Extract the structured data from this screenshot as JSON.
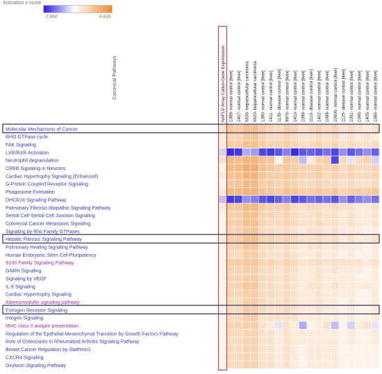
{
  "legend": {
    "title": "Activation z-score",
    "min_label": "-7.000",
    "max_label": "8.639",
    "min_color": "#2a20e0",
    "max_color": "#f08a30"
  },
  "colors": {
    "highlight_box": "#2a2a55",
    "column_highlight": "#b24a4a",
    "grid": "#ffffff"
  },
  "chart_data": {
    "type": "heatmap",
    "title": "",
    "ylabel": "Canonical Pathways",
    "value_range": [
      -7.0,
      8.639
    ],
    "columns": [
      "NAFLD Array Cation-Gene Expresssion",
      "1399- normal control [liver]",
      "1407- normal control [liver]",
      "6636- hepatocellular carcinoma",
      "6620- hepatocellular carcinoma",
      "1390- normal control [liver]",
      "1411- normal control [liver]",
      "1135- disease control [liver]",
      "9976- normal control [liver]",
      "1410- normal control [liver]",
      "1099- normal control [liver]",
      "1110- disease control [liver]",
      "1402- normal control [liver]",
      "1088- normal control [liver]",
      "10606- normal control [liver]",
      "1125- disease control [liver]",
      "1091- normal control [liver]",
      "1095- normal control [liver]",
      "1405- normal control [liver]",
      "1386- normal control [liver]"
    ],
    "highlighted_column": "NAFLD Array Cation-Gene Expresssion",
    "highlighted_rows": [
      "Molecular Mechanisms of Cancer",
      "Hepatic Fibrosis Signaling Pathway",
      "Estrogen Receptor Signaling"
    ],
    "rows": [
      {
        "label": "Molecular Mechanisms of Cancer",
        "color": "#3b3bb0",
        "values": [
          1.5,
          3.5,
          3.0,
          4.0,
          4.0,
          3.0,
          2.5,
          2.0,
          3.0,
          2.5,
          1.5,
          2.0,
          2.5,
          2.0,
          2.5,
          1.5,
          2.0,
          1.5,
          1.0,
          1.5
        ]
      },
      {
        "label": "RHO GTPase cycle",
        "color": "#3b3bb0",
        "values": [
          1.0,
          2.5,
          2.5,
          3.5,
          3.5,
          2.5,
          2.0,
          2.0,
          2.5,
          2.0,
          1.5,
          1.5,
          2.0,
          1.5,
          2.0,
          1.0,
          1.5,
          1.0,
          1.5,
          1.0
        ]
      },
      {
        "label": "FAK Signaling",
        "color": "#3b3bb0",
        "values": [
          1.0,
          3.0,
          3.0,
          4.0,
          4.0,
          3.0,
          2.5,
          2.5,
          3.0,
          2.5,
          2.0,
          2.0,
          2.5,
          2.0,
          2.5,
          1.5,
          2.0,
          1.5,
          1.5,
          2.0
        ]
      },
      {
        "label": "LXR/RXR Activation",
        "color": "#3b3bb0",
        "values": [
          -1.0,
          -6.5,
          -6.0,
          -2.0,
          -2.5,
          -5.5,
          -6.0,
          -5.0,
          -3.5,
          -6.5,
          -5.0,
          -4.5,
          -5.0,
          -4.0,
          -5.5,
          -3.0,
          -5.0,
          -4.0,
          -3.0,
          -4.5
        ]
      },
      {
        "label": "Neutrophil degranulation",
        "color": "#3b3bb0",
        "values": [
          1.5,
          4.5,
          4.0,
          5.0,
          5.0,
          4.0,
          3.5,
          0.5,
          3.5,
          3.0,
          -1.5,
          1.0,
          2.5,
          3.0,
          -5.5,
          2.0,
          -0.5,
          2.0,
          2.5,
          -1.0
        ]
      },
      {
        "label": "CREB Signaling in Neurons",
        "color": "#3b3bb0",
        "values": [
          0.5,
          4.5,
          4.5,
          5.5,
          5.5,
          4.0,
          3.5,
          3.0,
          3.5,
          3.0,
          2.5,
          2.5,
          3.0,
          2.5,
          3.0,
          2.0,
          2.5,
          2.0,
          2.0,
          2.5
        ]
      },
      {
        "label": "Cardiac Hypertrophy Signaling (Enhanced)",
        "color": "#3b3bb0",
        "values": [
          1.0,
          4.0,
          4.0,
          5.0,
          5.0,
          3.5,
          3.0,
          3.0,
          3.5,
          3.0,
          2.5,
          2.5,
          3.0,
          2.0,
          2.5,
          2.0,
          2.5,
          2.0,
          2.0,
          2.5
        ]
      },
      {
        "label": "G-Protein Coupled Receptor Signaling",
        "color": "#3b3bb0",
        "values": [
          0.5,
          3.5,
          3.5,
          4.5,
          4.5,
          3.0,
          3.0,
          2.5,
          3.0,
          2.5,
          2.0,
          2.0,
          2.5,
          2.0,
          2.0,
          1.5,
          2.0,
          1.5,
          1.5,
          2.0
        ]
      },
      {
        "label": "Phagosome Formation",
        "color": "#3b3bb0",
        "values": [
          1.0,
          4.5,
          4.5,
          5.0,
          5.0,
          4.0,
          3.5,
          3.0,
          4.0,
          3.5,
          3.0,
          3.0,
          3.5,
          3.0,
          3.5,
          2.5,
          3.0,
          3.0,
          3.0,
          3.5
        ]
      },
      {
        "label": "DHCR24 Signaling Pathway",
        "color": "#3b3bb0",
        "values": [
          -1.5,
          -6.0,
          -5.5,
          -3.0,
          -3.5,
          -5.0,
          -5.5,
          -4.5,
          -3.5,
          -5.5,
          -5.0,
          -4.0,
          -4.5,
          -4.0,
          -5.0,
          -3.0,
          -4.5,
          -3.5,
          -3.0,
          -4.0
        ]
      },
      {
        "label": "Pulmonary Fibrosis Idiopathic Signaling Pathway",
        "color": "#3b3bb0",
        "values": [
          1.0,
          3.5,
          3.5,
          4.5,
          4.5,
          3.0,
          2.5,
          2.5,
          3.0,
          2.0,
          1.5,
          2.0,
          2.0,
          1.5,
          2.0,
          1.5,
          1.5,
          1.0,
          1.0,
          1.5
        ]
      },
      {
        "label": "Sertoli Cell-Sertoli Cell Junction Signaling",
        "color": "#3b3bb0",
        "values": [
          0.5,
          3.0,
          3.0,
          4.0,
          4.0,
          2.5,
          2.5,
          2.0,
          2.5,
          2.0,
          1.5,
          1.5,
          2.0,
          1.5,
          1.5,
          1.0,
          1.5,
          1.0,
          1.0,
          1.5
        ]
      },
      {
        "label": "Colorectal Cancer Metastasis Signaling",
        "color": "#3b3bb0",
        "values": [
          0.5,
          3.0,
          3.0,
          4.0,
          4.0,
          2.5,
          2.0,
          2.0,
          2.5,
          2.0,
          1.5,
          1.5,
          2.0,
          1.5,
          1.5,
          1.0,
          1.5,
          1.0,
          1.0,
          1.5
        ]
      },
      {
        "label": "Signaling by Rho Family GTPases",
        "color": "#3b3bb0",
        "values": [
          0.5,
          2.5,
          2.5,
          3.5,
          3.5,
          2.0,
          2.0,
          1.5,
          2.0,
          1.5,
          1.0,
          1.5,
          1.5,
          1.0,
          1.5,
          1.0,
          1.0,
          1.0,
          0.5,
          1.0
        ]
      },
      {
        "label": "Hepatic Fibrosis Signaling Pathway",
        "color": "#3b3bb0",
        "values": [
          1.0,
          3.0,
          3.0,
          4.0,
          4.0,
          2.5,
          2.5,
          2.0,
          2.5,
          2.0,
          1.5,
          1.5,
          2.0,
          1.5,
          2.0,
          1.0,
          1.5,
          1.0,
          1.0,
          1.5
        ]
      },
      {
        "label": "Pulmonary Healing Signaling Pathway",
        "color": "#3b3bb0",
        "values": [
          0.5,
          2.5,
          2.5,
          3.5,
          3.5,
          2.0,
          2.0,
          1.5,
          2.0,
          1.5,
          1.0,
          1.5,
          1.5,
          1.0,
          1.5,
          1.0,
          1.0,
          1.0,
          0.5,
          1.0
        ]
      },
      {
        "label": "Human Embryonic Stem Cell Pluripotency",
        "color": "#3b3bb0",
        "values": [
          0.5,
          2.0,
          2.0,
          3.0,
          3.0,
          2.0,
          1.5,
          1.5,
          2.0,
          1.5,
          1.0,
          1.0,
          1.5,
          1.0,
          1.0,
          0.5,
          1.0,
          0.5,
          0.5,
          1.0
        ]
      },
      {
        "label": "S100 Family Signaling Pathway",
        "color": "#a030a0",
        "values": [
          0.5,
          3.0,
          3.0,
          3.5,
          3.5,
          2.5,
          2.5,
          2.0,
          2.5,
          2.0,
          1.5,
          1.5,
          2.0,
          1.5,
          1.5,
          1.5,
          1.5,
          1.5,
          1.0,
          1.5
        ]
      },
      {
        "label": "GNRH Signaling",
        "color": "#3b3bb0",
        "values": [
          0.5,
          2.5,
          2.5,
          3.0,
          3.0,
          2.0,
          2.0,
          1.5,
          2.0,
          1.5,
          1.0,
          1.0,
          1.5,
          1.0,
          1.5,
          1.0,
          1.0,
          1.0,
          0.5,
          1.0
        ]
      },
      {
        "label": "Signaling by VEGF",
        "color": "#3b3bb0",
        "values": [
          0.5,
          2.5,
          2.5,
          3.0,
          3.0,
          2.0,
          2.0,
          1.5,
          2.0,
          1.5,
          1.0,
          1.0,
          1.5,
          1.0,
          1.0,
          1.0,
          1.0,
          0.5,
          0.5,
          1.0
        ]
      },
      {
        "label": "IL-8 Signaling",
        "color": "#3b3bb0",
        "values": [
          0.5,
          2.5,
          2.5,
          3.5,
          3.5,
          2.0,
          2.0,
          1.5,
          2.0,
          1.5,
          1.0,
          1.5,
          1.5,
          1.0,
          1.5,
          1.0,
          1.0,
          1.0,
          1.0,
          1.0
        ]
      },
      {
        "label": "Cardiac Hypertrophy Signaling",
        "color": "#3b3bb0",
        "values": [
          0.5,
          2.5,
          2.5,
          3.0,
          3.0,
          2.0,
          2.0,
          1.5,
          2.0,
          1.5,
          1.0,
          1.0,
          1.5,
          1.0,
          1.0,
          1.0,
          1.0,
          0.5,
          0.5,
          1.0
        ]
      },
      {
        "label": "Adrenomedullin signaling pathway",
        "color": "#a030a0",
        "values": [
          0.5,
          2.0,
          2.0,
          3.0,
          3.0,
          2.0,
          1.5,
          1.5,
          2.0,
          1.5,
          1.0,
          1.0,
          1.5,
          1.0,
          1.0,
          0.5,
          1.0,
          0.5,
          0.5,
          1.0
        ]
      },
      {
        "label": "Estrogen Receptor Signaling",
        "color": "#3b3bb0",
        "values": [
          0.5,
          2.0,
          2.0,
          3.0,
          3.0,
          2.0,
          1.5,
          1.5,
          2.0,
          1.5,
          1.0,
          1.0,
          1.5,
          1.0,
          1.0,
          0.5,
          1.0,
          0.5,
          0.5,
          1.0
        ]
      },
      {
        "label": "Integrin Signaling",
        "color": "#3b3bb0",
        "values": [
          0.5,
          2.0,
          2.0,
          3.0,
          3.0,
          1.5,
          1.5,
          1.5,
          1.5,
          1.5,
          1.0,
          1.0,
          1.0,
          1.0,
          1.0,
          0.5,
          1.0,
          0.5,
          0.5,
          1.0
        ]
      },
      {
        "label": "MHC class II antigen presentation",
        "color": "#a030a0",
        "values": [
          0.5,
          2.5,
          2.5,
          3.0,
          3.0,
          1.5,
          1.0,
          -0.5,
          1.5,
          1.0,
          -2.0,
          0.5,
          1.0,
          1.5,
          -1.5,
          0.5,
          -1.0,
          1.0,
          1.5,
          -0.5
        ]
      },
      {
        "label": "Regulation of the Epithelial Mesenchymal Transition by Growth Factors Pathway",
        "color": "#3b3bb0",
        "values": [
          0.5,
          2.0,
          2.0,
          2.5,
          2.5,
          1.5,
          1.5,
          1.0,
          1.5,
          1.0,
          1.0,
          1.0,
          1.0,
          1.0,
          1.0,
          0.5,
          1.0,
          0.5,
          0.5,
          1.0
        ]
      },
      {
        "label": "Role of Osteoclasts in Rheumatoid Arthritis Signaling Pathway",
        "color": "#3b3bb0",
        "values": [
          0.5,
          2.0,
          2.0,
          2.5,
          2.5,
          1.5,
          1.5,
          1.0,
          1.5,
          1.0,
          1.0,
          1.0,
          1.0,
          1.0,
          1.0,
          0.5,
          1.0,
          0.5,
          0.5,
          1.0
        ]
      },
      {
        "label": "Breast Cancer Regulation by Stathmin1",
        "color": "#3b3bb0",
        "values": [
          0.5,
          2.0,
          2.0,
          2.5,
          2.5,
          1.5,
          1.5,
          1.0,
          1.5,
          1.0,
          0.5,
          1.0,
          1.0,
          1.0,
          1.0,
          0.5,
          0.5,
          0.5,
          0.5,
          0.5
        ]
      },
      {
        "label": "CXCR4 Signaling",
        "color": "#3b3bb0",
        "values": [
          0.5,
          2.0,
          2.0,
          2.5,
          2.5,
          1.5,
          1.5,
          1.0,
          1.5,
          1.0,
          0.5,
          1.0,
          1.0,
          1.0,
          1.0,
          0.5,
          0.5,
          0.5,
          0.5,
          0.5
        ]
      },
      {
        "label": "Oxytocin Signaling Pathway",
        "color": "#3b3bb0",
        "values": [
          0.5,
          2.0,
          2.0,
          2.5,
          2.5,
          1.5,
          1.5,
          1.0,
          1.5,
          1.0,
          0.5,
          1.0,
          1.0,
          1.0,
          1.0,
          0.5,
          0.5,
          0.5,
          0.5,
          0.5
        ]
      }
    ]
  }
}
